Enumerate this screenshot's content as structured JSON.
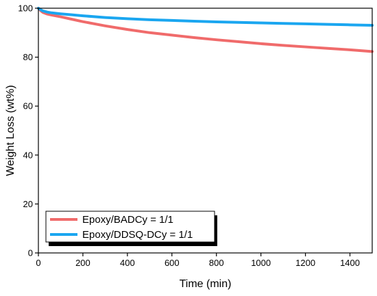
{
  "chart_data": {
    "type": "line",
    "title": "",
    "xlabel": "Time (min)",
    "ylabel": "Weight Loss (wt%)",
    "xlim": [
      0,
      1500
    ],
    "ylim": [
      0,
      100
    ],
    "xticks": [
      0,
      200,
      400,
      600,
      800,
      1000,
      1200,
      1400
    ],
    "yticks": [
      0,
      20,
      40,
      60,
      80,
      100
    ],
    "grid": false,
    "legend_position": "bottom-left",
    "series": [
      {
        "name": "Epoxy/BADCy = 1/1",
        "color": "#f06b6b",
        "x": [
          0,
          10,
          20,
          40,
          60,
          100,
          150,
          200,
          300,
          400,
          500,
          600,
          700,
          800,
          900,
          1000,
          1100,
          1200,
          1300,
          1400,
          1500
        ],
        "y": [
          100,
          99.0,
          98.3,
          97.6,
          97.2,
          96.5,
          95.5,
          94.5,
          92.8,
          91.3,
          90.0,
          89.0,
          88.0,
          87.1,
          86.3,
          85.5,
          84.8,
          84.2,
          83.6,
          83.0,
          82.3
        ]
      },
      {
        "name": "Epoxy/DDSQ-DCy = 1/1",
        "color": "#1aa6f0",
        "x": [
          0,
          10,
          20,
          40,
          60,
          100,
          150,
          200,
          300,
          400,
          500,
          600,
          700,
          800,
          900,
          1000,
          1100,
          1200,
          1300,
          1400,
          1500
        ],
        "y": [
          100,
          99.4,
          98.9,
          98.4,
          98.1,
          97.7,
          97.3,
          96.9,
          96.2,
          95.7,
          95.3,
          95.0,
          94.7,
          94.4,
          94.2,
          94.0,
          93.8,
          93.6,
          93.4,
          93.2,
          93.0
        ]
      }
    ]
  }
}
